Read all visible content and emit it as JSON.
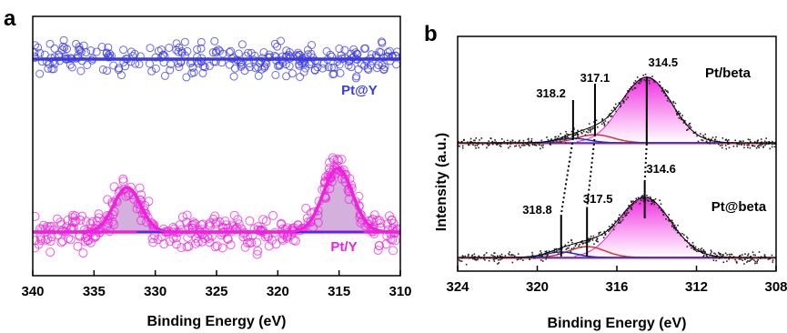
{
  "chart_data": [
    {
      "panel": "a",
      "type": "scatter",
      "xlabel": "Binding Energy (eV)",
      "ylabel": "",
      "xlim": [
        340,
        310
      ],
      "x_ticks": [
        340,
        335,
        330,
        325,
        320,
        315,
        310
      ],
      "colors": {
        "pt_y_top": "#3a3ae0",
        "pt_y_bottom": "#ee22dd",
        "fill": "#b070c0"
      },
      "series": [
        {
          "name": "Pt@Y",
          "baseline": true,
          "peaks": []
        },
        {
          "name": "Pt/Y",
          "baseline": true,
          "peaks": [
            {
              "center": 332.3,
              "height": 0.7,
              "width": 1.1
            },
            {
              "center": 315.1,
              "height": 1.0,
              "width": 1.2
            }
          ]
        }
      ]
    },
    {
      "panel": "b",
      "type": "line",
      "xlabel": "Binding Energy (eV)",
      "ylabel": "Intensity (a.u.)",
      "xlim": [
        324,
        308
      ],
      "x_ticks": [
        324,
        320,
        316,
        312,
        308
      ],
      "colors": {
        "envelope": "#000000",
        "main_fill": "#ee22dd",
        "red": "#e03030",
        "blue": "#2030d0"
      },
      "series": [
        {
          "name": "Pt/beta",
          "peaks": [
            {
              "label": "318.2",
              "center": 318.2
            },
            {
              "label": "317.1",
              "center": 317.1
            },
            {
              "label": "314.5",
              "center": 314.5
            }
          ]
        },
        {
          "name": "Pt@beta",
          "peaks": [
            {
              "label": "318.8",
              "center": 318.8
            },
            {
              "label": "317.5",
              "center": 317.5
            },
            {
              "label": "314.6",
              "center": 314.6
            }
          ]
        }
      ]
    }
  ]
}
